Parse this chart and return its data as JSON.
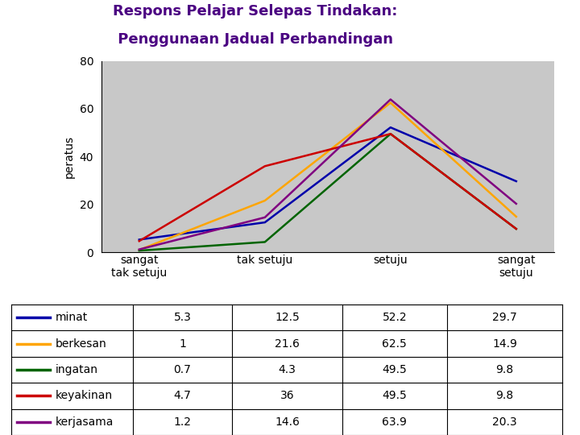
{
  "title_line1": "Respons Pelajar Selepas Tindakan:",
  "title_line2": " Penggunaan Jadual Perbandingan",
  "ylabel": "peratus",
  "x_labels": [
    "sangat\ntak setuju",
    "tak setuju",
    "setuju",
    "sangat\nsetuju"
  ],
  "x_positions": [
    0,
    1,
    2,
    3
  ],
  "ylim": [
    0,
    80
  ],
  "yticks": [
    0,
    20,
    40,
    60,
    80
  ],
  "series": [
    {
      "label": "minat",
      "color": "#0000AA",
      "values": [
        5.3,
        12.5,
        52.2,
        29.7
      ]
    },
    {
      "label": "berkesan",
      "color": "#FFA500",
      "values": [
        1.0,
        21.6,
        62.5,
        14.9
      ]
    },
    {
      "label": "ingatan",
      "color": "#006400",
      "values": [
        0.7,
        4.3,
        49.5,
        9.8
      ]
    },
    {
      "label": "keyakinan",
      "color": "#CC0000",
      "values": [
        4.7,
        36.0,
        49.5,
        9.8
      ]
    },
    {
      "label": "kerjasama",
      "color": "#800080",
      "values": [
        1.2,
        14.6,
        63.9,
        20.3
      ]
    }
  ],
  "table_data": [
    [
      "minat",
      "5.3",
      "12.5",
      "52.2",
      "29.7"
    ],
    [
      "berkesan",
      "1",
      "21.6",
      "62.5",
      "14.9"
    ],
    [
      "ingatan",
      "0.7",
      "4.3",
      "49.5",
      "9.8"
    ],
    [
      "keyakinan",
      "4.7",
      "36",
      "49.5",
      "9.8"
    ],
    [
      "kerjasama",
      "1.2",
      "14.6",
      "63.9",
      "20.3"
    ]
  ],
  "plot_bg": "#C8C8C8",
  "fig_bg": "#FFFFFF",
  "title_color": "#4B0082",
  "title_fontsize": 13,
  "axis_fontsize": 10,
  "table_fontsize": 10,
  "linewidth": 1.8
}
